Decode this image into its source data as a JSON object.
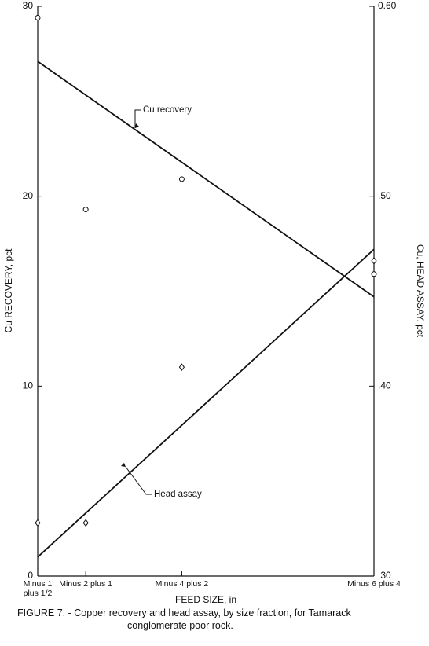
{
  "chart_data": {
    "type": "scatter",
    "title": "FIGURE 7. - Copper recovery and head assay, by size fraction, for Tamarack conglomerate poor rock.",
    "xlabel": "FEED SIZE, in",
    "ylabel": "Cu RECOVERY, pct",
    "y2label": "Cu, HEAD ASSAY, pct",
    "xlim": [
      0,
      7
    ],
    "xticks": [
      {
        "value": 0,
        "label": "Minus 1 plus 1/2"
      },
      {
        "value": 1,
        "label": "Minus 2 plus 1"
      },
      {
        "value": 3,
        "label": "Minus 4 plus 2"
      },
      {
        "value": 7,
        "label": "Minus 6 plus 4"
      }
    ],
    "ylim": [
      0,
      30
    ],
    "yticks": [
      0,
      10,
      20,
      30
    ],
    "y2lim": [
      0.3,
      0.6
    ],
    "y2ticks": [
      {
        "value": 0.3,
        "label": ".30"
      },
      {
        "value": 0.4,
        "label": ".40"
      },
      {
        "value": 0.5,
        "label": ".50"
      },
      {
        "value": 0.6,
        "label": "0.60"
      }
    ],
    "series": [
      {
        "name": "Cu recovery",
        "marker": "circle",
        "color": "#111111",
        "x": [
          0,
          1,
          3,
          7
        ],
        "values": [
          29.4,
          19.3,
          20.9,
          15.9
        ],
        "fit": {
          "x": [
            0,
            7
          ],
          "values": [
            27.1,
            14.7
          ]
        }
      },
      {
        "name": "Head assay",
        "marker": "diamond",
        "color": "#111111",
        "axis": "y2",
        "x": [
          0,
          1,
          3,
          7
        ],
        "values": [
          0.328,
          0.328,
          0.41,
          0.466
        ],
        "fit": {
          "x": [
            0,
            7
          ],
          "values": [
            0.31,
            0.472
          ]
        }
      }
    ]
  }
}
